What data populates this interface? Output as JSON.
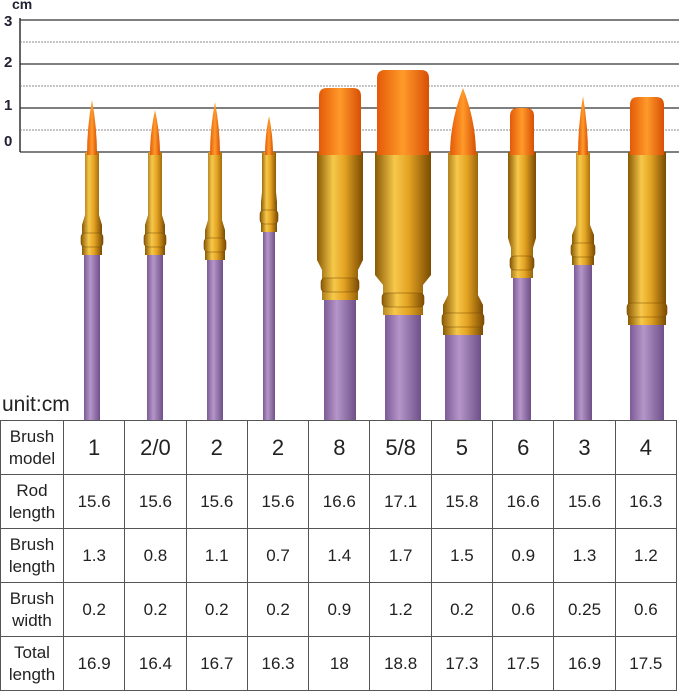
{
  "ruler": {
    "unit": "cm",
    "labels": [
      "3",
      "2",
      "1",
      "0"
    ]
  },
  "unit_note": "unit:cm",
  "table": {
    "rows": [
      [
        "Brush model",
        "1",
        "2/0",
        "2",
        "2",
        "8",
        "5/8",
        "5",
        "6",
        "3",
        "4"
      ],
      [
        "Rod length",
        "15.6",
        "15.6",
        "15.6",
        "15.6",
        "16.6",
        "17.1",
        "15.8",
        "16.6",
        "15.6",
        "16.3"
      ],
      [
        "Brush length",
        "1.3",
        "0.8",
        "1.1",
        "0.7",
        "1.4",
        "1.7",
        "1.5",
        "0.9",
        "1.3",
        "1.2"
      ],
      [
        "Brush width",
        "0.2",
        "0.2",
        "0.2",
        "0.2",
        "0.9",
        "1.2",
        "0.2",
        "0.6",
        "0.25",
        "0.6"
      ],
      [
        "Total length",
        "16.9",
        "16.4",
        "16.7",
        "16.3",
        "18",
        "18.8",
        "17.3",
        "17.5",
        "16.9",
        "17.5"
      ]
    ]
  }
}
